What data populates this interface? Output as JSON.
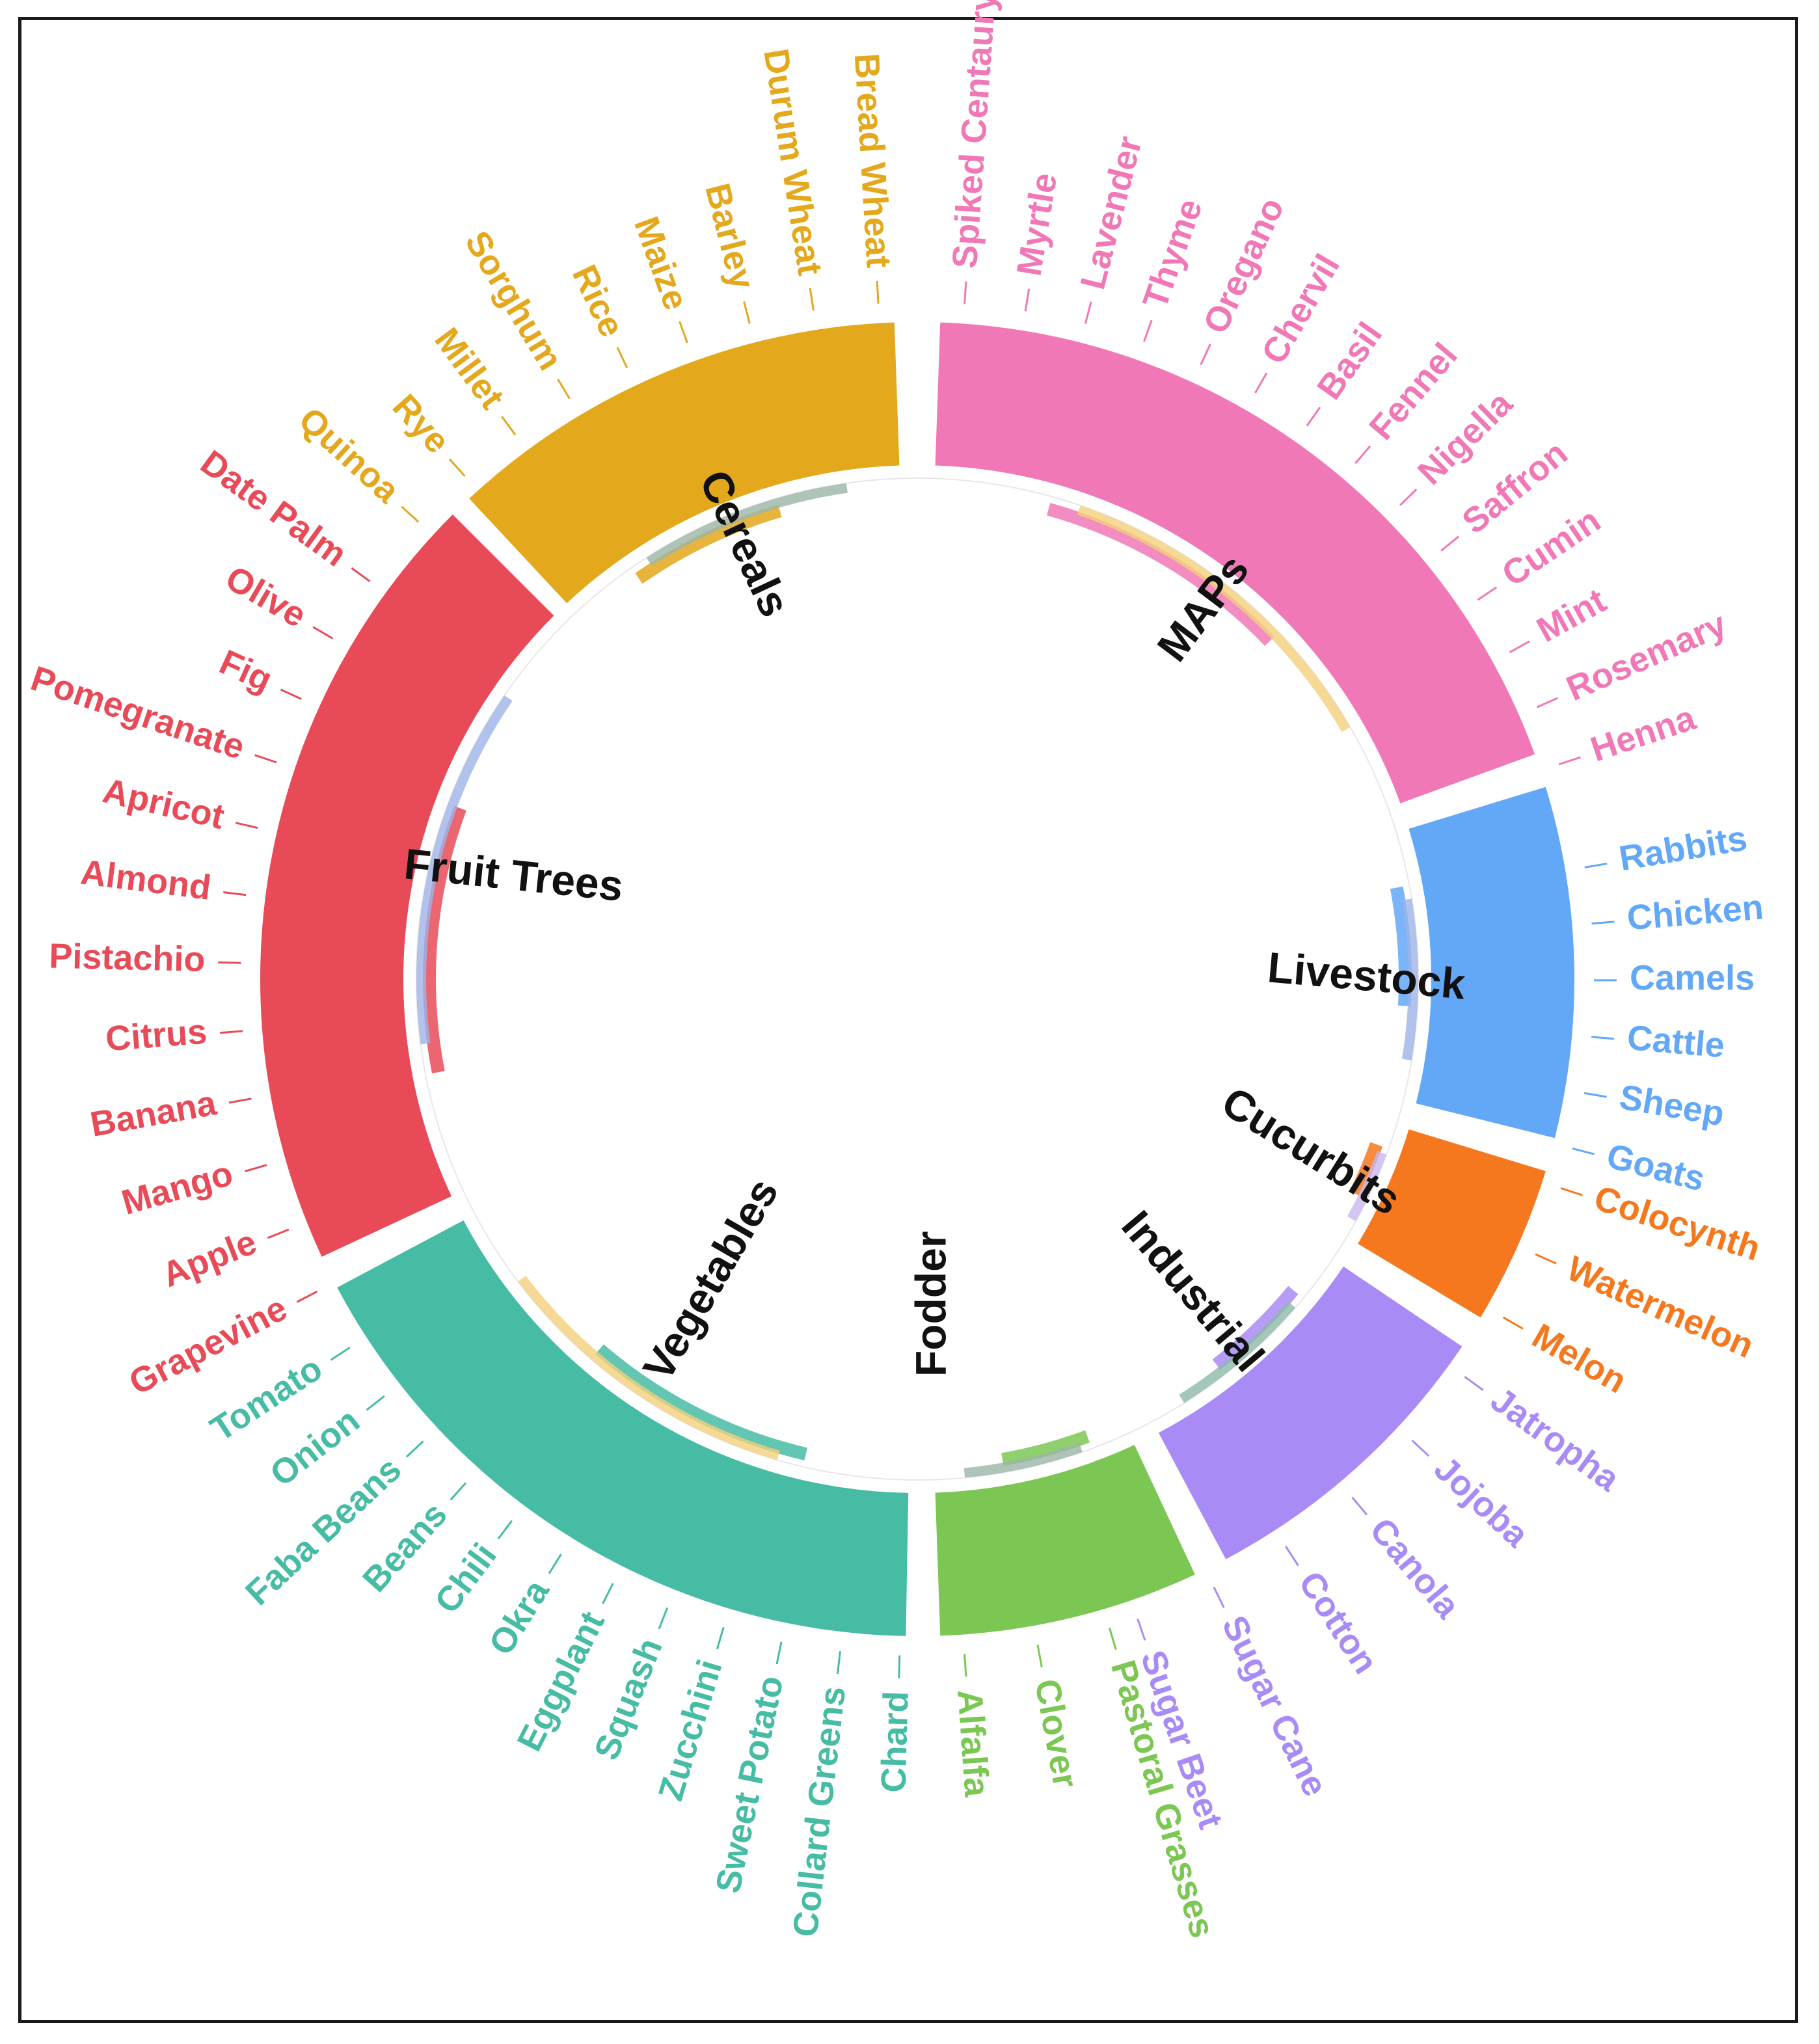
{
  "groups": [
    {
      "id": "cereals",
      "label": "Cereals",
      "color": "#E3A81C",
      "items": [
        "Quinoa",
        "Rye",
        "Millet",
        "Sorghum",
        "Rice",
        "Maize",
        "Barley",
        "Durum Wheat",
        "Bread Wheat"
      ]
    },
    {
      "id": "maps",
      "label": "MAPs",
      "color": "#F178B6",
      "items": [
        "Spiked Centaury",
        "Myrtle",
        "Lavender",
        "Thyme",
        "Oregano",
        "Chervil",
        "Basil",
        "Fennel",
        "Nigella",
        "Saffron",
        "Cumin",
        "Mint",
        "Rosemary",
        "Henna"
      ]
    },
    {
      "id": "livestock",
      "label": "Livestock",
      "color": "#62A8F7",
      "items": [
        "Rabbits",
        "Chicken",
        "Camels",
        "Cattle",
        "Sheep",
        "Goats"
      ]
    },
    {
      "id": "cucurbits",
      "label": "Cucurbits",
      "color": "#F5781E",
      "items": [
        "Colocynth",
        "Watermelon",
        "Melon"
      ]
    },
    {
      "id": "industrial",
      "label": "Industrial",
      "color": "#A98BF5",
      "items": [
        "Jatropha",
        "Jojoba",
        "Canola",
        "Cotton",
        "Sugar Cane",
        "Sugar Beet"
      ]
    },
    {
      "id": "fodder",
      "label": "Fodder",
      "color": "#7CC753",
      "items": [
        "Pastoral Grasses",
        "Clover",
        "Alfalfa"
      ]
    },
    {
      "id": "vegetables",
      "label": "Vegetables",
      "color": "#46BCA5",
      "items": [
        "Chard",
        "Collard Greens",
        "Sweet Potato",
        "Zucchini",
        "Squash",
        "Eggplant",
        "Okra",
        "Chili",
        "Beans",
        "Faba Beans",
        "Onion",
        "Tomato"
      ]
    },
    {
      "id": "fruit_trees",
      "label": "Fruit Trees",
      "color": "#E84B57",
      "items": [
        "Grapevine",
        "Apple",
        "Mango",
        "Banana",
        "Citrus",
        "Pistachio",
        "Almond",
        "Apricot",
        "Pomegranate",
        "Fig",
        "Olive",
        "Date Palm"
      ]
    }
  ]
}
